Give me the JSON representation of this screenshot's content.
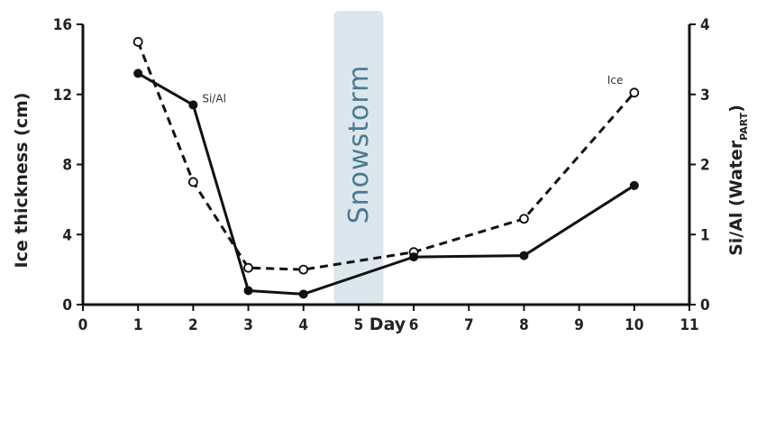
{
  "chart_data": {
    "type": "line",
    "xlabel": "Day",
    "ylabel": "Ice thickness (cm)",
    "y2label_main": "Si/Al (Water",
    "y2label_sub": "PART",
    "y2label_close": ")",
    "xlim": [
      0,
      11
    ],
    "ylim": [
      0,
      16
    ],
    "y2lim": [
      0,
      4
    ],
    "x_ticks": [
      "0",
      "1",
      "2",
      "3",
      "4",
      "5",
      "6",
      "7",
      "8",
      "9",
      "10",
      "11"
    ],
    "y_ticks": [
      "0",
      "4",
      "8",
      "12",
      "16"
    ],
    "y2_ticks": [
      "0",
      "1",
      "2",
      "3",
      "4"
    ],
    "grid": false,
    "annotation_band": {
      "label": "Snowstorm",
      "x_start": 4.55,
      "x_end": 5.45,
      "color": "#dbe7ed"
    },
    "series": [
      {
        "name": "Ice",
        "axis": "left",
        "style": "dashed",
        "marker": "open-circle",
        "x": [
          1,
          2,
          3,
          4,
          6,
          8,
          10
        ],
        "y": [
          15,
          7,
          2.1,
          2.0,
          3.0,
          4.9,
          12.1
        ]
      },
      {
        "name": "Si/Al",
        "axis": "right",
        "style": "solid",
        "marker": "filled-circle",
        "x": [
          1,
          2,
          3,
          4,
          6,
          8,
          10
        ],
        "y": [
          3.3,
          2.85,
          0.2,
          0.15,
          0.68,
          0.7,
          1.7
        ]
      }
    ],
    "colors": {
      "line": "#111111",
      "band": "#dbe7ed",
      "band_text": "#4a7b90"
    }
  }
}
